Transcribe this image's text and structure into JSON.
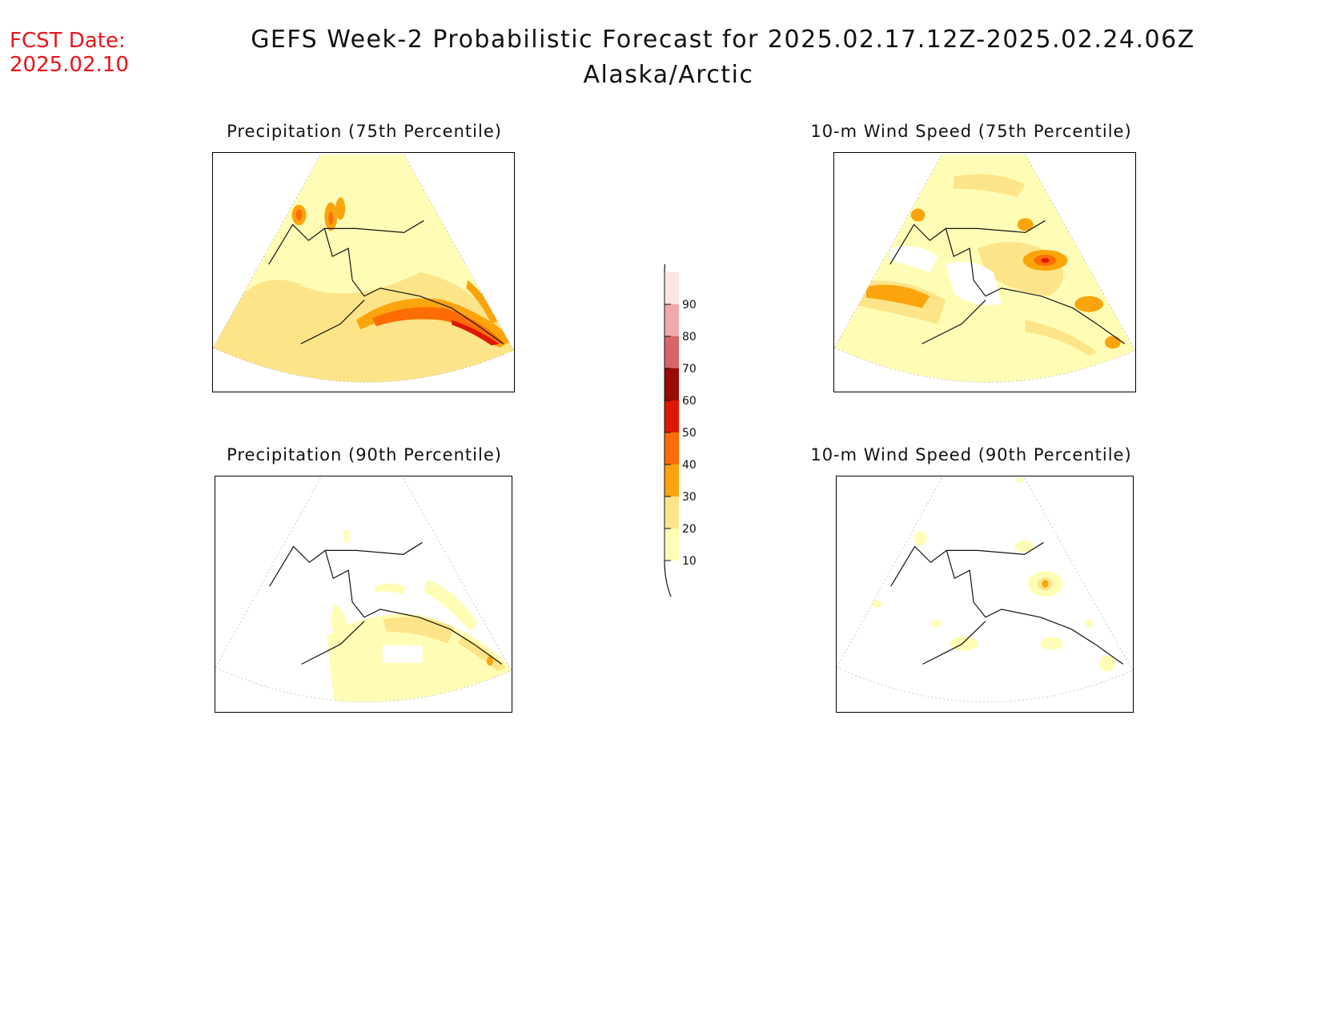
{
  "header": {
    "fcst_label": "FCST Date:",
    "fcst_date": "2025.02.10",
    "title_line1": "GEFS Week-2 Probabilistic Forecast for 2025.02.17.12Z-2025.02.24.06Z",
    "title_line2": "Alaska/Arctic"
  },
  "panels": [
    {
      "id": "precip75",
      "title": "Precipitation (75th Percentile)"
    },
    {
      "id": "wind75",
      "title": "10-m Wind Speed (75th Percentile)"
    },
    {
      "id": "precip90",
      "title": "Precipitation (90th Percentile)"
    },
    {
      "id": "wind90",
      "title": "10-m Wind Speed (90th Percentile)"
    }
  ],
  "legend": {
    "levels": [
      "10",
      "20",
      "30",
      "40",
      "50",
      "60",
      "70",
      "80",
      "90"
    ],
    "colors": [
      "#fffdb5",
      "#fde488",
      "#fba40c",
      "#fd6d03",
      "#df1605",
      "#9c0a05",
      "#d86565",
      "#f1a9aa",
      "#fde5e6"
    ]
  }
}
